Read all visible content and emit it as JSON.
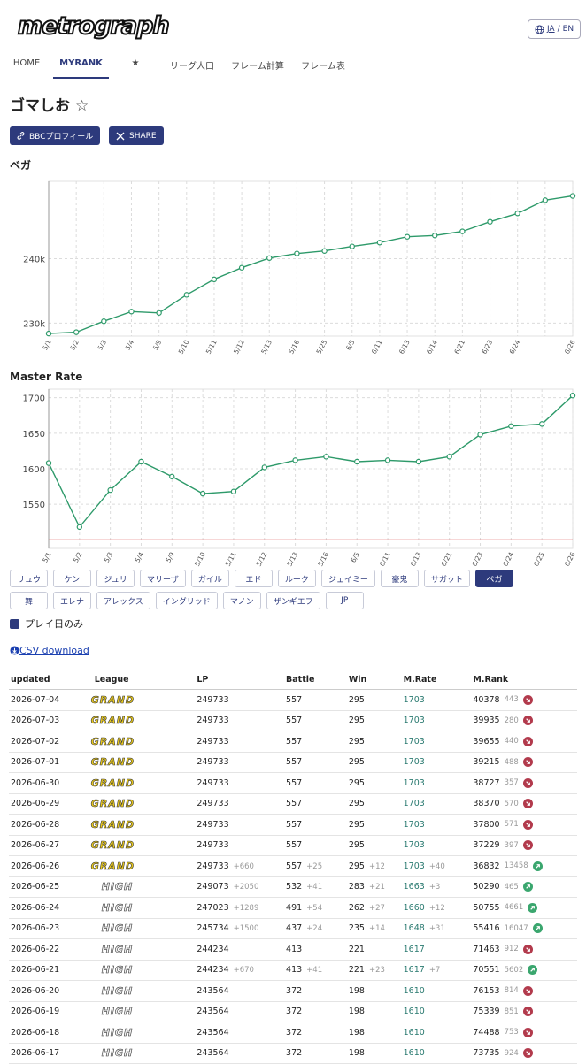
{
  "header": {
    "logo": "metrograph",
    "lang": {
      "current": "JA",
      "separator": "/",
      "other": "EN"
    }
  },
  "nav": [
    {
      "label": "HOME"
    },
    {
      "label": "MYRANK",
      "active": true
    },
    {
      "label": "★"
    },
    {
      "label": "リーグ人口"
    },
    {
      "label": "フレーム計算"
    },
    {
      "label": "フレーム表"
    }
  ],
  "player": {
    "name": "ゴマしお",
    "favorite": "☆"
  },
  "buttons": [
    "BBCプロフィール",
    "SHARE"
  ],
  "chart_data": [
    {
      "type": "line",
      "title": "ベガ",
      "color": "#2e9a6a",
      "grid": true,
      "categories": [
        "5/1",
        "5/2",
        "5/3",
        "5/4",
        "5/9",
        "5/10",
        "5/11",
        "5/12",
        "5/13",
        "5/16",
        "5/25",
        "6/5",
        "6/11",
        "6/13",
        "6/14",
        "6/21",
        "6/23",
        "6/24",
        null,
        "6/26"
      ],
      "values": [
        228400,
        228600,
        230300,
        231800,
        231600,
        234400,
        236800,
        238600,
        240100,
        240800,
        241200,
        241900,
        242500,
        243400,
        243600,
        244234,
        245734,
        247023,
        249073,
        249733
      ],
      "ylim": [
        228000,
        252000
      ],
      "yticks": [
        {
          "value": 230000,
          "label": "230k"
        },
        {
          "value": 240000,
          "label": "240k"
        }
      ]
    },
    {
      "type": "line",
      "title": "Master Rate",
      "color": "#2e9a6a",
      "grid": true,
      "categories": [
        "5/1",
        "5/2",
        "5/3",
        "5/4",
        "5/9",
        "5/10",
        "5/11",
        "5/12",
        "5/13",
        "5/16",
        "6/5",
        "6/11",
        "6/13",
        "6/21",
        "6/23",
        "6/24",
        "6/25",
        "6/26"
      ],
      "values": [
        1608,
        1518,
        1570,
        1610,
        1589,
        1565,
        1568,
        1602,
        1612,
        1617,
        1610,
        1612,
        1610,
        1617,
        1648,
        1660,
        1663,
        1703
      ],
      "ylim": [
        1488,
        1712
      ],
      "yticks": [
        1550,
        1600,
        1650,
        1700
      ],
      "reference_line": {
        "value": 1500,
        "color": "#e06060"
      }
    }
  ],
  "characters": [
    [
      {
        "name": "リュウ"
      },
      {
        "name": "ケン"
      },
      {
        "name": "ジュリ"
      },
      {
        "name": "マリーザ"
      },
      {
        "name": "ガイル"
      },
      {
        "name": "エド"
      },
      {
        "name": "ルーク"
      },
      {
        "name": "ジェイミー"
      },
      {
        "name": "豪鬼"
      },
      {
        "name": "サガット"
      },
      {
        "name": "ベガ",
        "selected": true
      }
    ],
    [
      {
        "name": "舞"
      },
      {
        "name": "エレナ"
      },
      {
        "name": "アレックス"
      },
      {
        "name": "イングリッド"
      },
      {
        "name": "マノン"
      },
      {
        "name": "ザンギエフ"
      },
      {
        "name": "JP"
      }
    ]
  ],
  "filter": {
    "label": "プレイ日のみ",
    "checked": true
  },
  "csv": "CSV download",
  "table": {
    "columns": [
      "updated",
      "League",
      "LP",
      "Battle",
      "Win",
      "M.Rate",
      "M.Rank"
    ],
    "rows": [
      {
        "updated": "2026-07-04",
        "league": "GRAND",
        "lp": 249733,
        "battle": 557,
        "win": 295,
        "rate": 1703,
        "rank": 40378,
        "rank_delta": 443,
        "trend": "down"
      },
      {
        "updated": "2026-07-03",
        "league": "GRAND",
        "lp": 249733,
        "battle": 557,
        "win": 295,
        "rate": 1703,
        "rank": 39935,
        "rank_delta": 280,
        "trend": "down"
      },
      {
        "updated": "2026-07-02",
        "league": "GRAND",
        "lp": 249733,
        "battle": 557,
        "win": 295,
        "rate": 1703,
        "rank": 39655,
        "rank_delta": 440,
        "trend": "down"
      },
      {
        "updated": "2026-07-01",
        "league": "GRAND",
        "lp": 249733,
        "battle": 557,
        "win": 295,
        "rate": 1703,
        "rank": 39215,
        "rank_delta": 488,
        "trend": "down"
      },
      {
        "updated": "2026-06-30",
        "league": "GRAND",
        "lp": 249733,
        "battle": 557,
        "win": 295,
        "rate": 1703,
        "rank": 38727,
        "rank_delta": 357,
        "trend": "down"
      },
      {
        "updated": "2026-06-29",
        "league": "GRAND",
        "lp": 249733,
        "battle": 557,
        "win": 295,
        "rate": 1703,
        "rank": 38370,
        "rank_delta": 570,
        "trend": "down"
      },
      {
        "updated": "2026-06-28",
        "league": "GRAND",
        "lp": 249733,
        "battle": 557,
        "win": 295,
        "rate": 1703,
        "rank": 37800,
        "rank_delta": 571,
        "trend": "down"
      },
      {
        "updated": "2026-06-27",
        "league": "GRAND",
        "lp": 249733,
        "battle": 557,
        "win": 295,
        "rate": 1703,
        "rank": 37229,
        "rank_delta": 397,
        "trend": "down"
      },
      {
        "updated": "2026-06-26",
        "league": "GRAND",
        "lp": 249733,
        "lp_delta": "+660",
        "battle": 557,
        "battle_delta": "+25",
        "win": 295,
        "win_delta": "+12",
        "rate": 1703,
        "rate_delta": "+40",
        "rank": 36832,
        "rank_delta": 13458,
        "trend": "up"
      },
      {
        "updated": "2026-06-25",
        "league": "HIGH",
        "lp": 249073,
        "lp_delta": "+2050",
        "battle": 532,
        "battle_delta": "+41",
        "win": 283,
        "win_delta": "+21",
        "rate": 1663,
        "rate_delta": "+3",
        "rank": 50290,
        "rank_delta": 465,
        "trend": "up"
      },
      {
        "updated": "2026-06-24",
        "league": "HIGH",
        "lp": 247023,
        "lp_delta": "+1289",
        "battle": 491,
        "battle_delta": "+54",
        "win": 262,
        "win_delta": "+27",
        "rate": 1660,
        "rate_delta": "+12",
        "rank": 50755,
        "rank_delta": 4661,
        "trend": "up"
      },
      {
        "updated": "2026-06-23",
        "league": "HIGH",
        "lp": 245734,
        "lp_delta": "+1500",
        "battle": 437,
        "battle_delta": "+24",
        "win": 235,
        "win_delta": "+14",
        "rate": 1648,
        "rate_delta": "+31",
        "rank": 55416,
        "rank_delta": 16047,
        "trend": "up"
      },
      {
        "updated": "2026-06-22",
        "league": "HIGH",
        "lp": 244234,
        "battle": 413,
        "win": 221,
        "rate": 1617,
        "rank": 71463,
        "rank_delta": 912,
        "trend": "down"
      },
      {
        "updated": "2026-06-21",
        "league": "HIGH",
        "lp": 244234,
        "lp_delta": "+670",
        "battle": 413,
        "battle_delta": "+41",
        "win": 221,
        "win_delta": "+23",
        "rate": 1617,
        "rate_delta": "+7",
        "rank": 70551,
        "rank_delta": 5602,
        "trend": "up"
      },
      {
        "updated": "2026-06-20",
        "league": "HIGH",
        "lp": 243564,
        "battle": 372,
        "win": 198,
        "rate": 1610,
        "rank": 76153,
        "rank_delta": 814,
        "trend": "down"
      },
      {
        "updated": "2026-06-19",
        "league": "HIGH",
        "lp": 243564,
        "battle": 372,
        "win": 198,
        "rate": 1610,
        "rank": 75339,
        "rank_delta": 851,
        "trend": "down"
      },
      {
        "updated": "2026-06-18",
        "league": "HIGH",
        "lp": 243564,
        "battle": 372,
        "win": 198,
        "rate": 1610,
        "rank": 74488,
        "rank_delta": 753,
        "trend": "down"
      },
      {
        "updated": "2026-06-17",
        "league": "HIGH",
        "lp": 243564,
        "battle": 372,
        "win": 198,
        "rate": 1610,
        "rank": 73735,
        "rank_delta": 924,
        "trend": "down"
      }
    ]
  }
}
